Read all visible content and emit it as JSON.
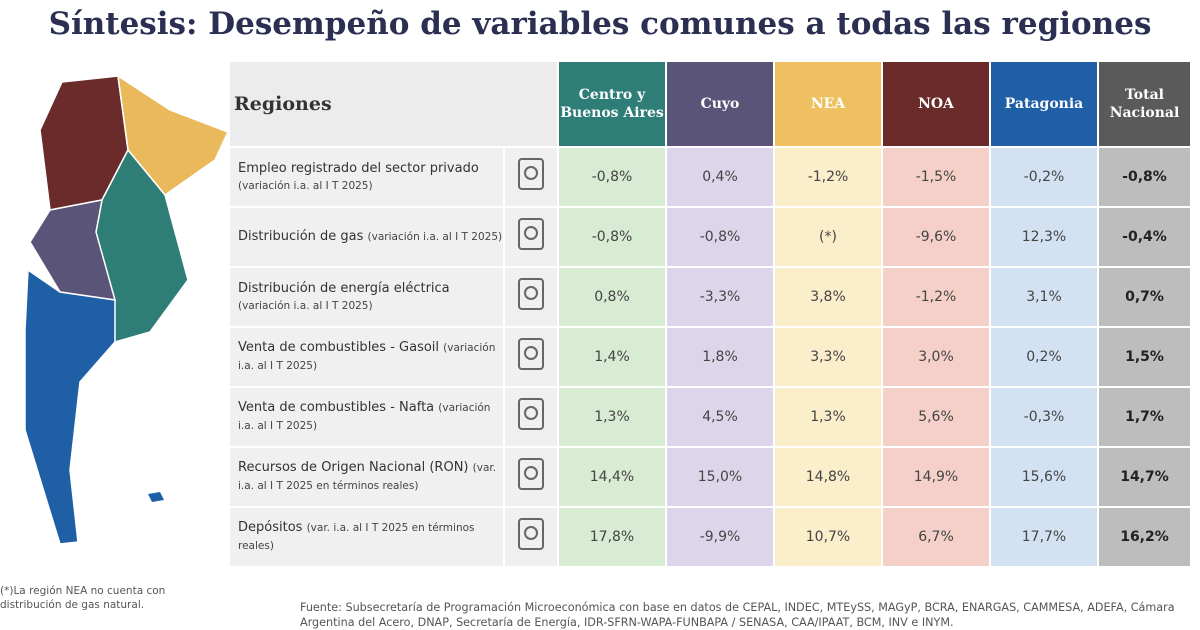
{
  "title": "Síntesis: Desempeño de variables comunes a todas las regiones",
  "table": {
    "header": {
      "label": "Regiones",
      "columns": [
        "Centro y Buenos Aires",
        "Cuyo",
        "NEA",
        "NOA",
        "Patagonia",
        "Total Nacional"
      ]
    },
    "rows": [
      {
        "label": "Empleo registrado del sector privado",
        "note": "(variación i.a. al I T 2025)",
        "values": [
          "-0,8%",
          "0,4%",
          "-1,2%",
          "-1,5%",
          "-0,2%",
          "-0,8%"
        ]
      },
      {
        "label": "Distribución de gas",
        "note": "(variación i.a. al I T 2025)",
        "values": [
          "-0,8%",
          "-0,8%",
          "(*)",
          "-9,6%",
          "12,3%",
          "-0,4%"
        ]
      },
      {
        "label": "Distribución de energía eléctrica",
        "note": "(variación i.a. al I T 2025)",
        "values": [
          "0,8%",
          "-3,3%",
          "3,8%",
          "-1,2%",
          "3,1%",
          "0,7%"
        ]
      },
      {
        "label": "Venta de combustibles - Gasoil",
        "note": "(variación i.a. al I T 2025)",
        "values": [
          "1,4%",
          "1,8%",
          "3,3%",
          "3,0%",
          "0,2%",
          "1,5%"
        ]
      },
      {
        "label": "Venta de combustibles - Nafta",
        "note": "(variación i.a. al I T 2025)",
        "values": [
          "1,3%",
          "4,5%",
          "1,3%",
          "5,6%",
          "-0,3%",
          "1,7%"
        ]
      },
      {
        "label": "Recursos de Origen Nacional (RON)",
        "note": "(var. i.a. al I T 2025 en términos reales)",
        "values": [
          "14,4%",
          "15,0%",
          "14,8%",
          "14,9%",
          "15,6%",
          "14,7%"
        ]
      },
      {
        "label": "Depósitos",
        "note": "(var. i.a. al I T 2025 en términos reales)",
        "values": [
          "17,8%",
          "-9,9%",
          "10,7%",
          "6,7%",
          "17,7%",
          "16,2%"
        ]
      }
    ]
  },
  "footnote": "(*)La región NEA no cuenta con distribución de gas natural.",
  "source": "Fuente: Subsecretaría de Programación Microeconómica con base en datos de CEPAL, INDEC, MTEySS, MAGyP, BCRA, ENARGAS, CAMMESA, ADEFA, Cámara Argentina del Acero, DNAP, Secretaría de Energía, IDR-SFRN-WAPA-FUNBAPA / SENASA, CAA/IPAAT, BCM, INV e INYM."
}
